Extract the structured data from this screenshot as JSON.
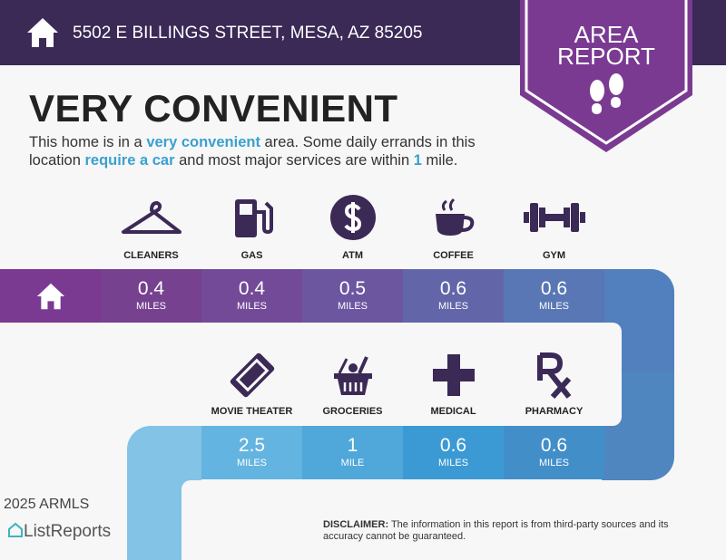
{
  "header": {
    "address": "5502 E BILLINGS STREET, MESA, AZ 85205",
    "icon": "home-icon"
  },
  "badge": {
    "line1": "AREA",
    "line2": "REPORT",
    "icon": "footprints-icon"
  },
  "headline": "VERY CONVENIENT",
  "description": {
    "p1": "This home is in a ",
    "h1": "very convenient",
    "p2": " area. Some daily errands in this location ",
    "h2": "require a car",
    "p3": " and most major services are within ",
    "h3": "1",
    "p4": " mile."
  },
  "row1": [
    {
      "label": "CLEANERS",
      "value": "0.4",
      "unit": "MILES",
      "icon": "hanger-icon",
      "color": "#76418f"
    },
    {
      "label": "GAS",
      "value": "0.4",
      "unit": "MILES",
      "icon": "gas-pump-icon",
      "color": "#734a98"
    },
    {
      "label": "ATM",
      "value": "0.5",
      "unit": "MILES",
      "icon": "dollar-icon",
      "color": "#6c56a0"
    },
    {
      "label": "COFFEE",
      "value": "0.6",
      "unit": "MILES",
      "icon": "coffee-icon",
      "color": "#6266a9"
    },
    {
      "label": "GYM",
      "value": "0.6",
      "unit": "MILES",
      "icon": "dumbbell-icon",
      "color": "#5877b4"
    }
  ],
  "row2": [
    {
      "label": "MOVIE THEATER",
      "value": "2.5",
      "unit": "MILES",
      "icon": "ticket-icon",
      "color": "#63b4e0"
    },
    {
      "label": "GROCERIES",
      "value": "1",
      "unit": "MILE",
      "icon": "basket-icon",
      "color": "#4fa7da"
    },
    {
      "label": "MEDICAL",
      "value": "0.6",
      "unit": "MILES",
      "icon": "medical-cross-icon",
      "color": "#3b9ad3"
    },
    {
      "label": "PHARMACY",
      "value": "0.6",
      "unit": "MILES",
      "icon": "rx-icon",
      "color": "#428ec9"
    }
  ],
  "footer": {
    "brand": "ListReports",
    "watermark": "2025 ARMLS",
    "disclaimer_label": "DISCLAIMER:",
    "disclaimer_text": " The information in this report is from third-party sources and its accuracy cannot be guaranteed."
  },
  "colors": {
    "header": "#3b2956",
    "badge": "#7a3a92",
    "accent": "#3aa0d0",
    "icon": "#3b2956"
  }
}
